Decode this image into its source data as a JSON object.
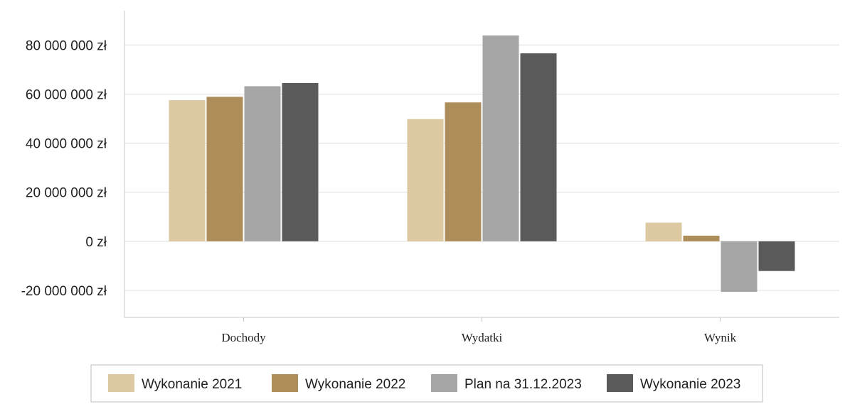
{
  "chart_data": {
    "type": "bar",
    "categories": [
      "Dochody",
      "Wydatki",
      "Wynik"
    ],
    "series": [
      {
        "name": "Wykonanie 2021",
        "color": "#dcc9a1",
        "values": [
          57500000,
          49800000,
          7600000
        ]
      },
      {
        "name": "Wykonanie 2022",
        "color": "#ad8d5a",
        "values": [
          58900000,
          56600000,
          2300000
        ]
      },
      {
        "name": "Plan na 31.12.2023",
        "color": "#a5a5a5",
        "values": [
          63200000,
          83900000,
          -20600000
        ]
      },
      {
        "name": "Wykonanie 2023",
        "color": "#5a5a5a",
        "values": [
          64500000,
          76600000,
          -12100000
        ]
      }
    ],
    "yticks": [
      {
        "value": 80000000,
        "label": "80 000 000 zł"
      },
      {
        "value": 60000000,
        "label": "60 000 000 zł"
      },
      {
        "value": 40000000,
        "label": "40 000 000 zł"
      },
      {
        "value": 20000000,
        "label": "20 000 000 zł"
      },
      {
        "value": 0,
        "label": "0 zł"
      },
      {
        "value": -20000000,
        "label": "-20 000 000 zł"
      }
    ],
    "ylim": [
      -31000000,
      94000000
    ],
    "grid": true,
    "legend_position": "bottom"
  }
}
